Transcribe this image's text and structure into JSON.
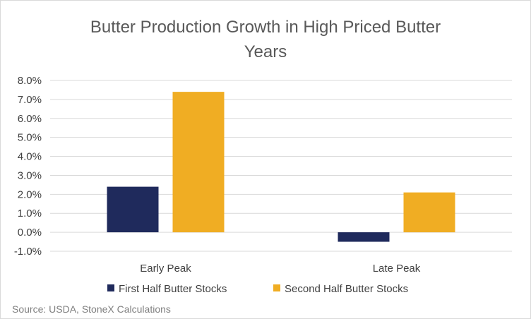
{
  "chart_data": {
    "type": "bar",
    "title_lines": [
      "Butter Production Growth in High Priced Butter",
      "Years"
    ],
    "categories": [
      "Early Peak",
      "Late Peak"
    ],
    "series": [
      {
        "name": "First Half Butter Stocks",
        "color": "#1f2a5c",
        "values": [
          0.024,
          -0.005
        ]
      },
      {
        "name": "Second Half Butter Stocks",
        "color": "#f0ad23",
        "values": [
          0.074,
          0.021
        ]
      }
    ],
    "y_ticks": [
      "8.0%",
      "7.0%",
      "6.0%",
      "5.0%",
      "4.0%",
      "3.0%",
      "2.0%",
      "1.0%",
      "0.0%",
      "-1.0%"
    ],
    "ylim": [
      -0.01,
      0.08
    ],
    "grid": true,
    "legend_position": "bottom",
    "source": "Source: USDA, StoneX Calculations"
  }
}
